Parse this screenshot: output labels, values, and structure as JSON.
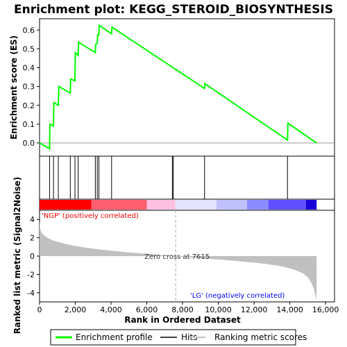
{
  "chart_data": {
    "type": "line",
    "title": "Enrichment plot: KEGG_STEROID_BIOSYNTHESIS",
    "top_panel": {
      "ylabel": "Enrichment score (ES)",
      "ylim": [
        -0.07,
        0.66
      ],
      "yticks": [
        0.0,
        0.1,
        0.2,
        0.3,
        0.4,
        0.5,
        0.6
      ],
      "ytick_labels": [
        "0.0",
        "0.1",
        "0.2",
        "0.3",
        "0.4",
        "0.5",
        "0.6"
      ],
      "series": [
        {
          "name": "Enrichment profile",
          "color": "#00ff00",
          "x": [
            0,
            560,
            580,
            780,
            800,
            1050,
            1080,
            1720,
            1740,
            1980,
            2000,
            2160,
            2180,
            3120,
            3140,
            3230,
            3250,
            3320,
            3340,
            4030,
            4050,
            9230,
            9250,
            13870,
            13890,
            15500
          ],
          "y": [
            0.0,
            -0.03,
            0.1,
            0.09,
            0.215,
            0.2,
            0.3,
            0.265,
            0.34,
            0.33,
            0.48,
            0.465,
            0.535,
            0.48,
            0.525,
            0.53,
            0.575,
            0.575,
            0.625,
            0.58,
            0.615,
            0.29,
            0.315,
            0.015,
            0.105,
            0.0
          ]
        }
      ]
    },
    "hits": {
      "name": "Hits",
      "x": [
        560,
        780,
        1050,
        1720,
        1980,
        2160,
        3120,
        3230,
        3320,
        4030,
        7430,
        7480,
        9230,
        13870
      ]
    },
    "colorbar": {
      "segments": [
        {
          "from": 0,
          "to": 2900,
          "color": "#ff0000"
        },
        {
          "from": 2900,
          "to": 6000,
          "color": "#ff5f6f"
        },
        {
          "from": 6000,
          "to": 7600,
          "color": "#ffc1e2"
        },
        {
          "from": 7600,
          "to": 9900,
          "color": "#e3e3ff"
        },
        {
          "from": 9900,
          "to": 11600,
          "color": "#c1c1ff"
        },
        {
          "from": 11600,
          "to": 12800,
          "color": "#8c8cff"
        },
        {
          "from": 12800,
          "to": 14900,
          "color": "#5f4fff"
        },
        {
          "from": 14900,
          "to": 15500,
          "color": "#1a00d9"
        }
      ]
    },
    "bottom_panel": {
      "ylabel": "Ranked list metric (Signal2Noise)",
      "xlabel": "Rank in Ordered Dataset",
      "ylim": [
        -5,
        5
      ],
      "yticks": [
        -4,
        -2,
        0,
        2,
        4
      ],
      "ytick_labels": [
        "-4",
        "-2",
        "0",
        "2",
        "4"
      ],
      "xlim": [
        0,
        16500
      ],
      "xticks": [
        0,
        2000,
        4000,
        6000,
        8000,
        10000,
        12000,
        14000,
        16000
      ],
      "xtick_labels": [
        "0",
        "2,000",
        "4,000",
        "6,000",
        "8,000",
        "10,000",
        "12,000",
        "14,000",
        "16,000"
      ],
      "series": [
        {
          "name": "Ranking metric scores",
          "color": "#c0c0c0",
          "x": [
            0,
            30,
            100,
            200,
            400,
            700,
            1000,
            1500,
            2000,
            3000,
            4000,
            5000,
            6000,
            7000,
            7615,
            8500,
            9500,
            10500,
            11500,
            12500,
            13500,
            14200,
            14700,
            15000,
            15200,
            15350,
            15450,
            15500
          ],
          "y": [
            3.9,
            3.0,
            2.6,
            2.35,
            2.05,
            1.75,
            1.55,
            1.3,
            1.1,
            0.8,
            0.58,
            0.4,
            0.25,
            0.1,
            0.0,
            -0.15,
            -0.3,
            -0.45,
            -0.62,
            -0.82,
            -1.1,
            -1.45,
            -1.85,
            -2.3,
            -2.9,
            -3.6,
            -4.4,
            -4.8
          ]
        }
      ],
      "annotations": [
        {
          "text": "'NGP' (positively correlated)",
          "color": "#ff0000"
        },
        {
          "text": "Zero cross at 7615",
          "color": "#333333",
          "x": 7615
        },
        {
          "text": "'LG' (negatively correlated)",
          "color": "#0000ff"
        }
      ]
    },
    "legend": [
      "Enrichment profile",
      "Hits",
      "Ranking metric scores"
    ]
  }
}
